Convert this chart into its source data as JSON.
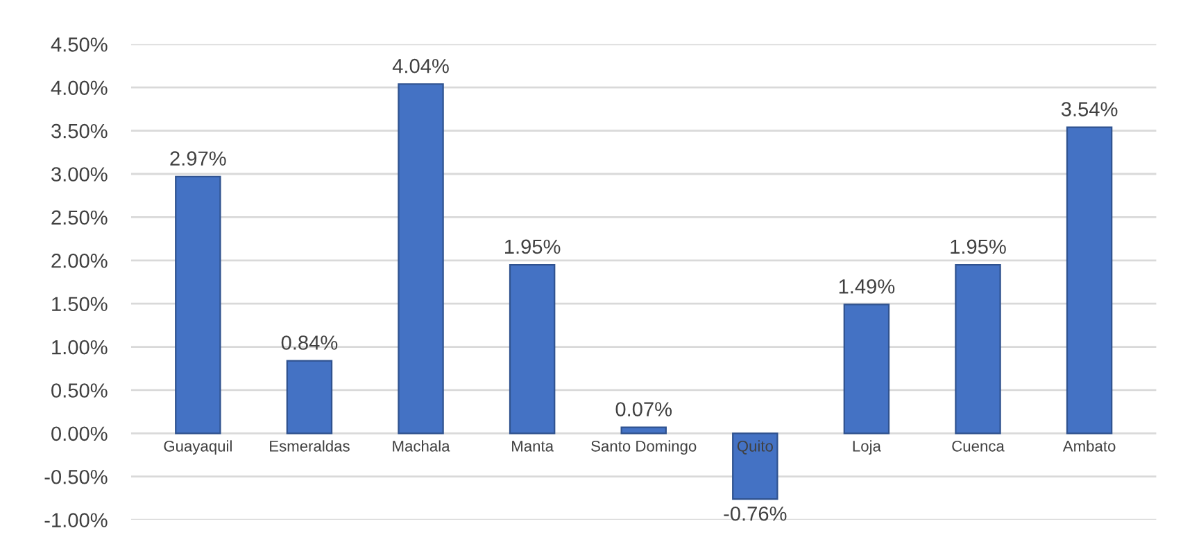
{
  "chart_data": {
    "type": "bar",
    "categories": [
      "Guayaquil",
      "Esmeraldas",
      "Machala",
      "Manta",
      "Santo Domingo",
      "Quito",
      "Loja",
      "Cuenca",
      "Ambato"
    ],
    "values": [
      2.97,
      0.84,
      4.04,
      1.95,
      0.07,
      -0.76,
      1.49,
      1.95,
      3.54
    ],
    "value_labels": [
      "2.97%",
      "0.84%",
      "4.04%",
      "1.95%",
      "0.07%",
      "-0.76%",
      "1.49%",
      "1.95%",
      "3.54%"
    ],
    "color": "#4472c4",
    "ylim": [
      -1.0,
      4.5
    ],
    "yticks": [
      {
        "value": -1.0,
        "label": "-1.00%"
      },
      {
        "value": -0.5,
        "label": "-0.50%"
      },
      {
        "value": 0.0,
        "label": "0.00%"
      },
      {
        "value": 0.5,
        "label": "0.50%"
      },
      {
        "value": 1.0,
        "label": "1.00%"
      },
      {
        "value": 1.5,
        "label": "1.50%"
      },
      {
        "value": 2.0,
        "label": "2.00%"
      },
      {
        "value": 2.5,
        "label": "2.50%"
      },
      {
        "value": 3.0,
        "label": "3.00%"
      },
      {
        "value": 3.5,
        "label": "3.50%"
      },
      {
        "value": 4.0,
        "label": "4.00%"
      },
      {
        "value": 4.5,
        "label": "4.50%"
      }
    ],
    "grid": "y"
  }
}
